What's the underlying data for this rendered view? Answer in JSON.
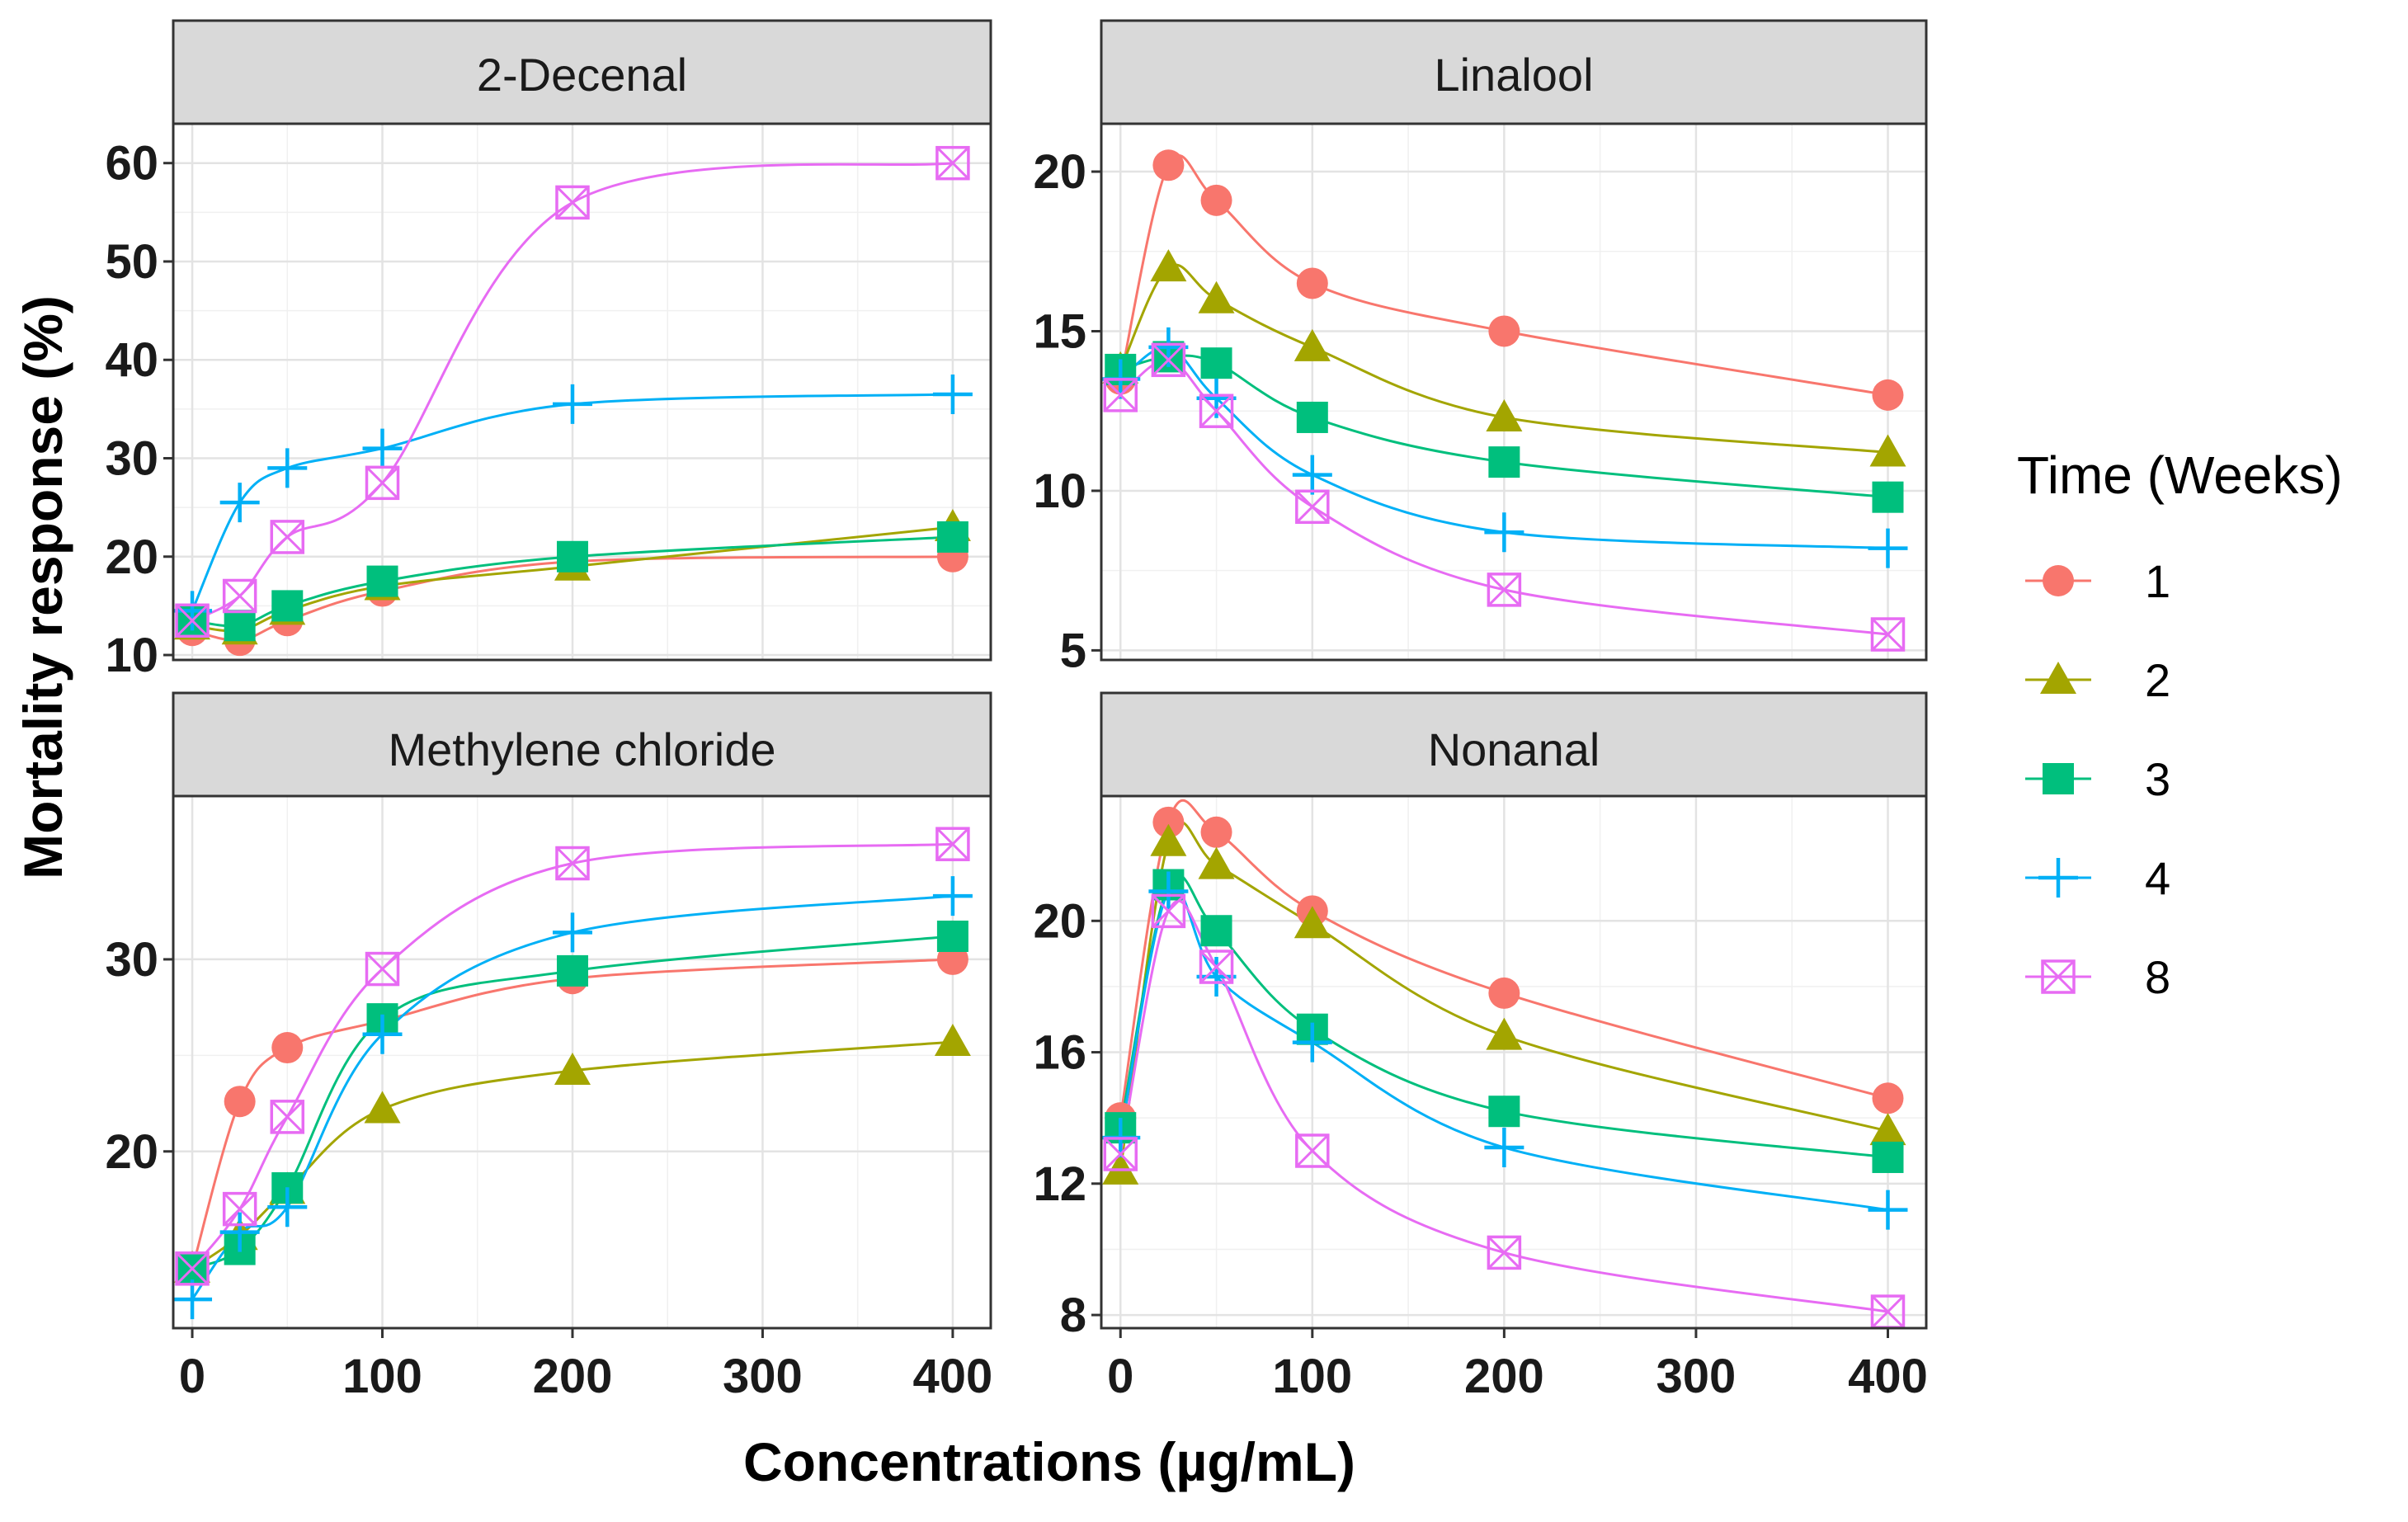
{
  "chart_data": {
    "type": "scatter",
    "xlabel": "Concentrations (µg/mL)",
    "ylabel": "Mortality response  (%)",
    "x": [
      0,
      25,
      50,
      100,
      200,
      400
    ],
    "x_ticks": [
      0,
      100,
      200,
      300,
      400
    ],
    "xlim": [
      -10,
      420
    ],
    "legend": {
      "title": "Time (Weeks)",
      "position": "right",
      "entries": [
        {
          "label": "1",
          "color": "#F8766D",
          "shape": "circle"
        },
        {
          "label": "2",
          "color": "#A3A500",
          "shape": "triangle"
        },
        {
          "label": "3",
          "color": "#00BF7D",
          "shape": "square"
        },
        {
          "label": "4",
          "color": "#00B0F6",
          "shape": "plus"
        },
        {
          "label": "8",
          "color": "#E76BF3",
          "shape": "square-cross"
        }
      ]
    },
    "panels": [
      {
        "title": "2-Decenal",
        "ylim": [
          9.5,
          64
        ],
        "y_ticks": [
          10,
          20,
          30,
          40,
          50,
          60
        ],
        "series": [
          {
            "name": "1",
            "values": [
              12.5,
              11.5,
              13.5,
              16.5,
              19.5,
              20
            ]
          },
          {
            "name": "2",
            "values": [
              13,
              12.5,
              14.5,
              17,
              19,
              23
            ]
          },
          {
            "name": "3",
            "values": [
              13.5,
              13,
              15,
              17.5,
              20,
              22
            ]
          },
          {
            "name": "4",
            "values": [
              14.5,
              25.5,
              29,
              31,
              35.5,
              36.5
            ]
          },
          {
            "name": "8",
            "values": [
              13.5,
              16,
              22,
              27.5,
              56,
              60
            ]
          }
        ]
      },
      {
        "title": "Linalool",
        "ylim": [
          4.7,
          21.5
        ],
        "y_ticks": [
          5,
          10,
          15,
          20
        ],
        "series": [
          {
            "name": "1",
            "values": [
              13.5,
              20.2,
              19.1,
              16.5,
              15,
              13
            ]
          },
          {
            "name": "2",
            "values": [
              13.8,
              17,
              16,
              14.5,
              12.3,
              11.2
            ]
          },
          {
            "name": "3",
            "values": [
              13.8,
              14.2,
              14,
              12.3,
              10.9,
              9.8
            ]
          },
          {
            "name": "4",
            "values": [
              13.5,
              14.5,
              12.9,
              10.5,
              8.7,
              8.2
            ]
          },
          {
            "name": "8",
            "values": [
              13,
              14.1,
              12.5,
              9.5,
              6.9,
              5.5
            ]
          }
        ]
      },
      {
        "title": "Methylene chloride",
        "ylim": [
          10.8,
          38.5
        ],
        "y_ticks": [
          20,
          30
        ],
        "series": [
          {
            "name": "1",
            "values": [
              13.9,
              22.6,
              25.4,
              26.8,
              29,
              30
            ]
          },
          {
            "name": "2",
            "values": [
              13.9,
              15.6,
              18,
              22.2,
              24.2,
              25.7
            ]
          },
          {
            "name": "3",
            "values": [
              13.9,
              14.9,
              18.1,
              26.9,
              29.4,
              31.2
            ]
          },
          {
            "name": "4",
            "values": [
              12.3,
              15.8,
              17.1,
              26.1,
              31.4,
              33.3
            ]
          },
          {
            "name": "8",
            "values": [
              13.9,
              17,
              21.8,
              29.5,
              35,
              36
            ]
          }
        ]
      },
      {
        "title": "Nonanal",
        "ylim": [
          7.6,
          23.8
        ],
        "y_ticks": [
          8,
          12,
          16,
          20
        ],
        "series": [
          {
            "name": "1",
            "values": [
              14,
              23,
              22.7,
              20.3,
              17.8,
              14.6
            ]
          },
          {
            "name": "2",
            "values": [
              12.4,
              22.4,
              21.7,
              19.9,
              16.5,
              13.6
            ]
          },
          {
            "name": "3",
            "values": [
              13.7,
              21.1,
              19.7,
              16.7,
              14.2,
              12.8
            ]
          },
          {
            "name": "4",
            "values": [
              13.4,
              20.9,
              18.3,
              16.3,
              13.1,
              11.2
            ]
          },
          {
            "name": "8",
            "values": [
              12.9,
              20.3,
              18.6,
              13,
              9.9,
              8.1
            ]
          }
        ]
      }
    ]
  }
}
